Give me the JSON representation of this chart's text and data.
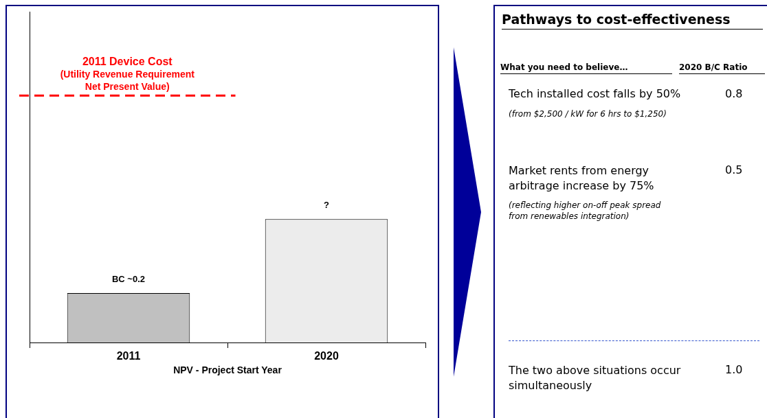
{
  "chart_data": [
    {
      "type": "bar",
      "categories": [
        "2011",
        "2020"
      ],
      "xlabel": "NPV - Project Start Year",
      "ylim": [
        0,
        1.34
      ],
      "tick_labels": "x",
      "values": [
        0.2,
        0.5
      ],
      "colors": [
        "#c0c0c0",
        "#ececec"
      ],
      "value_labels": [
        "BC ~0.2",
        "?"
      ],
      "ref_lines": [
        {
          "axis": "y",
          "value": 1,
          "label": "2011 Device Cost\n(Utility Revenue Requirement\nNet Present Value)",
          "color": "#ff0000",
          "line_style": "dashed"
        }
      ],
      "grid": false,
      "legend": false
    },
    {
      "type": "other",
      "title": "Pathways to cost-effectiveness",
      "annotations": [
        "What you need to believe…",
        "2020 B/C Ratio",
        "Tech installed cost falls by 50%",
        "0.8",
        "(from $2,500 / kW for 6 hrs to $1,250)",
        "Market rents from energy\narbitrage increase by 75%",
        "0.5",
        "(reflecting higher on-off peak spread\nfrom renewables integration)",
        "The two above situations occur\nsimultaneously",
        "1.0"
      ]
    }
  ]
}
